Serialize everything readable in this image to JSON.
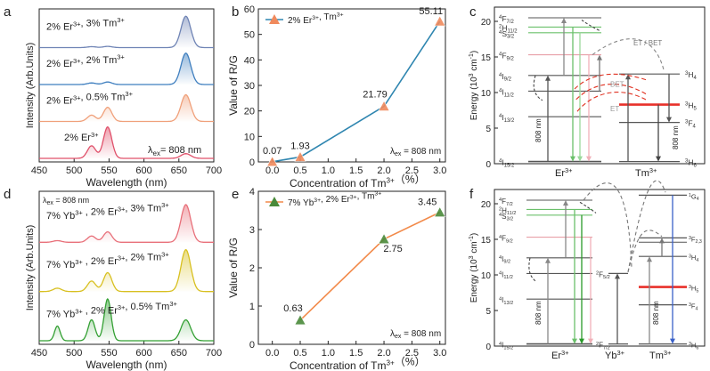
{
  "panel_letters": {
    "a": "a",
    "b": "b",
    "c": "c",
    "d": "d",
    "e": "e",
    "f": "f"
  },
  "chart_data": [
    {
      "panel": "a",
      "type": "line",
      "xlabel": "Wavelength (nm)",
      "ylabel": "Intensity (Arb.Units)",
      "xlim": [
        450,
        700
      ],
      "x_ticks": [
        "450",
        "500",
        "550",
        "600",
        "650",
        "700"
      ],
      "annotation": {
        "prefix": "λ",
        "sub": "ex",
        "suffix": "= 808 nm"
      },
      "peaks_nm": [
        525,
        548,
        660
      ],
      "series": [
        {
          "name": "2% Er3+, 3% Tm3+",
          "label_parts": [
            "2% Er",
            "3+",
            ", 3% Tm",
            "3+"
          ],
          "color": "#6f84b5",
          "peak_660": 1.0,
          "peak_548": 0.04,
          "peak_525": 0.03
        },
        {
          "name": "2% Er3+, 2% Tm3+",
          "label_parts": [
            "2% Er",
            "3+",
            ", 2% Tm",
            "3+"
          ],
          "color": "#3f7fbf",
          "peak_660": 1.0,
          "peak_548": 0.08,
          "peak_525": 0.05
        },
        {
          "name": "2% Er3+, 0.5% Tm3+",
          "label_parts": [
            "2% Er",
            "3+",
            ", 0.5% Tm",
            "3+"
          ],
          "color": "#f0a07a",
          "peak_660": 0.85,
          "peak_548": 0.45,
          "peak_525": 0.2
        },
        {
          "name": "2% Er3+",
          "label_parts": [
            "2% Er",
            "3+",
            "",
            ""
          ],
          "color": "#e0506a",
          "peak_660": 0.15,
          "peak_548": 1.0,
          "peak_525": 0.4
        }
      ]
    },
    {
      "panel": "b",
      "type": "line",
      "xlabel": "Concentration of Tm3+（%）",
      "xlabel_parts": [
        "Concentration of Tm",
        "3+",
        "（%）"
      ],
      "ylabel": "Value of R/G",
      "xlim": [
        -0.25,
        3.1
      ],
      "ylim": [
        0,
        60
      ],
      "x_ticks": [
        "0.0",
        "0.5",
        "1.0",
        "1.5",
        "2.0",
        "2.5",
        "3.0"
      ],
      "y_ticks": [
        "0",
        "10",
        "20",
        "30",
        "40",
        "50",
        "60"
      ],
      "legend": {
        "parts": [
          "2% Er",
          "3+",
          ", Tm",
          "3+"
        ]
      },
      "annotation": {
        "prefix": "λ",
        "sub": "ex",
        "suffix": " = 808 nm"
      },
      "series": [
        {
          "name": "2% Er3+, Tm3+",
          "x": [
            0,
            0.5,
            2,
            3
          ],
          "y": [
            0.07,
            1.93,
            21.79,
            55.11
          ],
          "labels": [
            "0.07",
            "1.93",
            "21.79",
            "55.11"
          ],
          "line_color": "#2f86b0",
          "marker_color": "#f08a5d"
        }
      ]
    },
    {
      "panel": "e",
      "type": "line",
      "xlabel": "Concentration of Tm3+（%）",
      "xlabel_parts": [
        "Concentration of Tm",
        "3+",
        "（%）"
      ],
      "ylabel": "Value of R/G",
      "xlim": [
        -0.25,
        3.1
      ],
      "ylim": [
        0,
        4
      ],
      "x_ticks": [
        "0.0",
        "0.5",
        "1.0",
        "1.5",
        "2.0",
        "2.5",
        "3.0"
      ],
      "y_ticks": [
        "0",
        "1",
        "2",
        "3",
        "4"
      ],
      "legend": {
        "parts": [
          "7% Yb",
          "3+",
          ",  2% Er",
          "3+",
          ", Tm",
          "3+"
        ]
      },
      "annotation": {
        "prefix": "λ",
        "sub": "ex",
        "suffix": " = 808 nm"
      },
      "series": [
        {
          "name": "7% Yb3+, 2% Er3+, Tm3+",
          "x": [
            0.5,
            2,
            3
          ],
          "y": [
            0.63,
            2.75,
            3.45
          ],
          "labels": [
            "0.63",
            "2.75",
            "3.45"
          ],
          "line_color": "#f28a4a",
          "marker_color": "#4a8a3a"
        }
      ]
    },
    {
      "panel": "d",
      "type": "line",
      "xlabel": "Wavelength (nm)",
      "ylabel": "Intensity (Arb.Units)",
      "xlim": [
        450,
        700
      ],
      "x_ticks": [
        "450",
        "500",
        "550",
        "600",
        "650",
        "700"
      ],
      "annotation": {
        "prefix": "λ",
        "sub": "ex",
        "suffix": " = 808 nm"
      },
      "series": [
        {
          "name": "7% Yb3+, 2% Er3+, 3% Tm3+",
          "label_parts": [
            "7% Yb",
            "3+",
            " , 2% Er",
            "3+",
            ", 3% Tm",
            "3+"
          ],
          "color": "#e8707a"
        },
        {
          "name": "7% Yb3+, 2% Er3+, 2% Tm3+",
          "label_parts": [
            "7% Yb",
            "3+",
            " , 2% Er",
            "3+",
            ", 2% Tm",
            "3+"
          ],
          "color": "#d8c020"
        },
        {
          "name": "7% Yb3+, 2% Er3+, 0.5% Tm3+",
          "label_parts": [
            "7% Yb",
            "3+",
            " , 2% Er",
            "3+",
            ", 0.5% Tm",
            "3+"
          ],
          "color": "#33a033"
        }
      ]
    }
  ],
  "diagrams": {
    "c": {
      "ylabel_parts": [
        "Energy (10",
        "3",
        " cm",
        "-1",
        ")"
      ],
      "y_ticks": [
        "0",
        "5",
        "10",
        "15",
        "20"
      ],
      "er_levels": [
        {
          "t": "4",
          "b": "F",
          "s": "7/2"
        },
        {
          "t": "2",
          "b": "H",
          "s": "11/2"
        },
        {
          "t": "4",
          "b": "S",
          "s": "3/2"
        },
        {
          "t": "4",
          "b": "F",
          "s": "9/2"
        },
        {
          "t": "4",
          "b": "I",
          "s": "9/2"
        },
        {
          "t": "4",
          "b": "I",
          "s": "11/2"
        },
        {
          "t": "4",
          "b": "I",
          "s": "13/2"
        },
        {
          "t": "4",
          "b": "I",
          "s": "15/2"
        }
      ],
      "tm_levels": [
        {
          "t": "3",
          "b": "H",
          "s": "4"
        },
        {
          "t": "3",
          "b": "H",
          "s": "5"
        },
        {
          "t": "3",
          "b": "F",
          "s": "4"
        },
        {
          "t": "3",
          "b": "H",
          "s": "6"
        }
      ],
      "labels": {
        "et_bet": "ET / BET",
        "bet": "BET",
        "et": "ET",
        "pump": "808 nm",
        "ion_er": "Er",
        "ion_tm": "Tm",
        "ion_sup": "3+"
      }
    },
    "f": {
      "ylabel_parts": [
        "Energy (10",
        "3",
        " cm",
        "-1",
        ")"
      ],
      "y_ticks": [
        "0",
        "5",
        "10",
        "15",
        "20"
      ],
      "er_levels": [
        {
          "t": "4",
          "b": "F",
          "s": "7/2"
        },
        {
          "t": "2",
          "b": "H",
          "s": "11/2"
        },
        {
          "t": "4",
          "b": "S",
          "s": "3/2"
        },
        {
          "t": "4",
          "b": "F",
          "s": "9/2"
        },
        {
          "t": "4",
          "b": "I",
          "s": "9/2"
        },
        {
          "t": "4",
          "b": "I",
          "s": "11/2"
        },
        {
          "t": "4",
          "b": "I",
          "s": "13/2"
        },
        {
          "t": "4",
          "b": "I",
          "s": "15/2"
        }
      ],
      "yb_levels": [
        {
          "t": "2",
          "b": "F",
          "s": "5/2"
        },
        {
          "t": "2",
          "b": "F",
          "s": "7/2"
        }
      ],
      "tm_levels": [
        {
          "t": "1",
          "b": "G",
          "s": "4"
        },
        {
          "t": "3",
          "b": "F",
          "s": "2,3"
        },
        {
          "t": "3",
          "b": "H",
          "s": "4"
        },
        {
          "t": "3",
          "b": "H",
          "s": "5"
        },
        {
          "t": "3",
          "b": "F",
          "s": "4"
        },
        {
          "t": "3",
          "b": "H",
          "s": "6"
        }
      ],
      "labels": {
        "pump": "808 nm",
        "ion_er": "Er",
        "ion_yb": "Yb",
        "ion_tm": "Tm",
        "ion_sup": "3+"
      }
    }
  }
}
